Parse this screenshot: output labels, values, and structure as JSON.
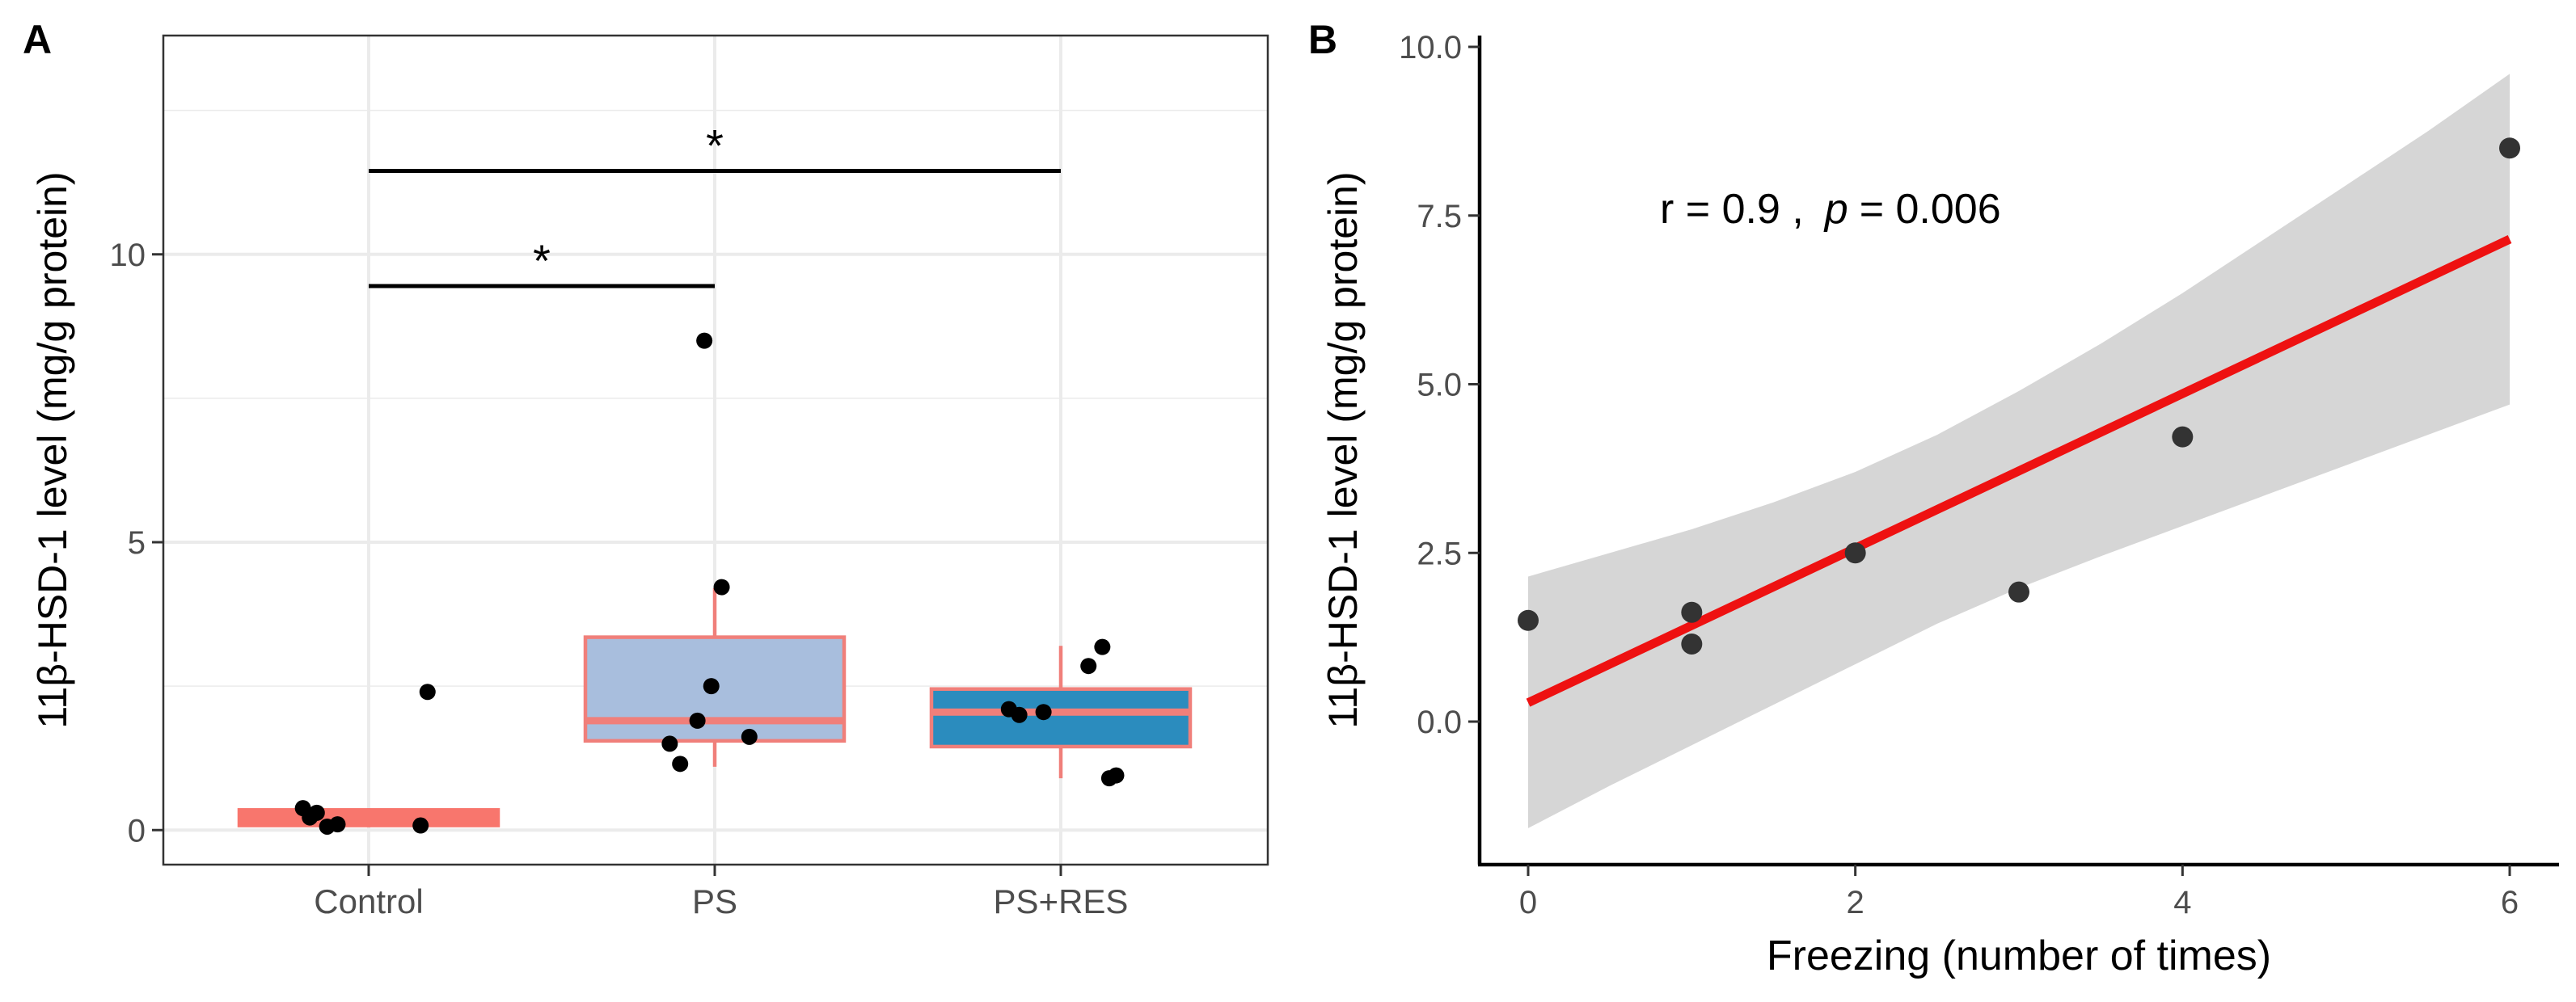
{
  "figure": {
    "panel_a_label": "A",
    "panel_b_label": "B"
  },
  "chart_data": [
    {
      "type": "box",
      "panel": "A",
      "title": "",
      "xlabel": "",
      "ylabel": "11β-HSD-1 level (mg/g protein)",
      "ylim": [
        -0.6,
        13.8
      ],
      "yticks": [
        0,
        5,
        10
      ],
      "ytick_labels": [
        "0",
        "5",
        "10"
      ],
      "grid": true,
      "categories": [
        "Control",
        "PS",
        "PS+RES"
      ],
      "boxes": [
        {
          "name": "Control",
          "min": 0.05,
          "q1": 0.08,
          "median": 0.2,
          "q3": 0.35,
          "max": 0.38,
          "fill": "#f8766d",
          "border": "#f8766d",
          "median_color": "#f8766d"
        },
        {
          "name": "PS",
          "min": 1.1,
          "q1": 1.55,
          "median": 1.9,
          "q3": 3.35,
          "max": 4.2,
          "fill": "#a8bedd",
          "border": "#f07f7a",
          "median_color": "#f07f7a"
        },
        {
          "name": "PS+RES",
          "min": 0.9,
          "q1": 1.45,
          "median": 2.05,
          "q3": 2.45,
          "max": 3.2,
          "fill": "#2b8cbe",
          "border": "#f07f7a",
          "median_color": "#f07f7a"
        }
      ],
      "points": [
        {
          "group": "Control",
          "offset": -0.19,
          "y": 0.38
        },
        {
          "group": "Control",
          "offset": -0.17,
          "y": 0.22
        },
        {
          "group": "Control",
          "offset": -0.15,
          "y": 0.3
        },
        {
          "group": "Control",
          "offset": -0.12,
          "y": 0.06
        },
        {
          "group": "Control",
          "offset": -0.09,
          "y": 0.1
        },
        {
          "group": "Control",
          "offset": 0.15,
          "y": 0.08
        },
        {
          "group": "Control",
          "offset": 0.17,
          "y": 2.4
        },
        {
          "group": "PS",
          "offset": -0.03,
          "y": 8.5
        },
        {
          "group": "PS",
          "offset": 0.02,
          "y": 4.22
        },
        {
          "group": "PS",
          "offset": -0.01,
          "y": 2.5
        },
        {
          "group": "PS",
          "offset": -0.05,
          "y": 1.9
        },
        {
          "group": "PS",
          "offset": 0.1,
          "y": 1.62
        },
        {
          "group": "PS",
          "offset": -0.13,
          "y": 1.5
        },
        {
          "group": "PS",
          "offset": -0.1,
          "y": 1.15
        },
        {
          "group": "PS+RES",
          "offset": -0.15,
          "y": 2.1
        },
        {
          "group": "PS+RES",
          "offset": -0.12,
          "y": 2.0
        },
        {
          "group": "PS+RES",
          "offset": -0.05,
          "y": 2.05
        },
        {
          "group": "PS+RES",
          "offset": 0.08,
          "y": 2.85
        },
        {
          "group": "PS+RES",
          "offset": 0.12,
          "y": 3.18
        },
        {
          "group": "PS+RES",
          "offset": 0.14,
          "y": 0.9
        },
        {
          "group": "PS+RES",
          "offset": 0.16,
          "y": 0.95
        }
      ],
      "significance": [
        {
          "from": "Control",
          "to": "PS",
          "y": 9.45,
          "label": "*"
        },
        {
          "from": "Control",
          "to": "PS+RES",
          "y": 11.45,
          "label": "*"
        }
      ]
    },
    {
      "type": "scatter",
      "panel": "B",
      "title": "",
      "xlabel": "Freezing (number of times)",
      "ylabel": "11β-HSD-1 level (mg/g protein)",
      "xlim": [
        -0.3,
        6.3
      ],
      "ylim": [
        -2.1,
        10.1
      ],
      "xticks": [
        0,
        2,
        4,
        6
      ],
      "xtick_labels": [
        "0",
        "2",
        "4",
        "6"
      ],
      "yticks": [
        0,
        2.5,
        5,
        7.5,
        10
      ],
      "ytick_labels": [
        "0.0",
        "2.5",
        "5.0",
        "7.5",
        "10.0"
      ],
      "grid": false,
      "points": [
        {
          "x": 0,
          "y": 1.5
        },
        {
          "x": 1,
          "y": 1.62
        },
        {
          "x": 1,
          "y": 1.15
        },
        {
          "x": 2,
          "y": 2.5
        },
        {
          "x": 3,
          "y": 1.92
        },
        {
          "x": 4,
          "y": 4.22
        },
        {
          "x": 6,
          "y": 8.5
        }
      ],
      "fit_line": {
        "x": [
          0,
          6
        ],
        "y": [
          0.28,
          7.15
        ],
        "color": "#ee1111"
      },
      "confidence_band": {
        "x": [
          0,
          0.5,
          1,
          1.5,
          2,
          2.5,
          3,
          3.5,
          4,
          4.5,
          5,
          5.5,
          6
        ],
        "upper": [
          2.15,
          2.5,
          2.85,
          3.25,
          3.7,
          4.25,
          4.9,
          5.6,
          6.35,
          7.15,
          7.95,
          8.75,
          9.6
        ],
        "lower": [
          -1.58,
          -0.95,
          -0.35,
          0.25,
          0.85,
          1.45,
          1.98,
          2.45,
          2.9,
          3.35,
          3.8,
          4.25,
          4.7
        ],
        "color": "#d6d6d6"
      },
      "annotation": {
        "r_part": "r = 0.9 ,",
        "p_symbol": "p",
        "p_part": "= 0.006"
      }
    }
  ]
}
